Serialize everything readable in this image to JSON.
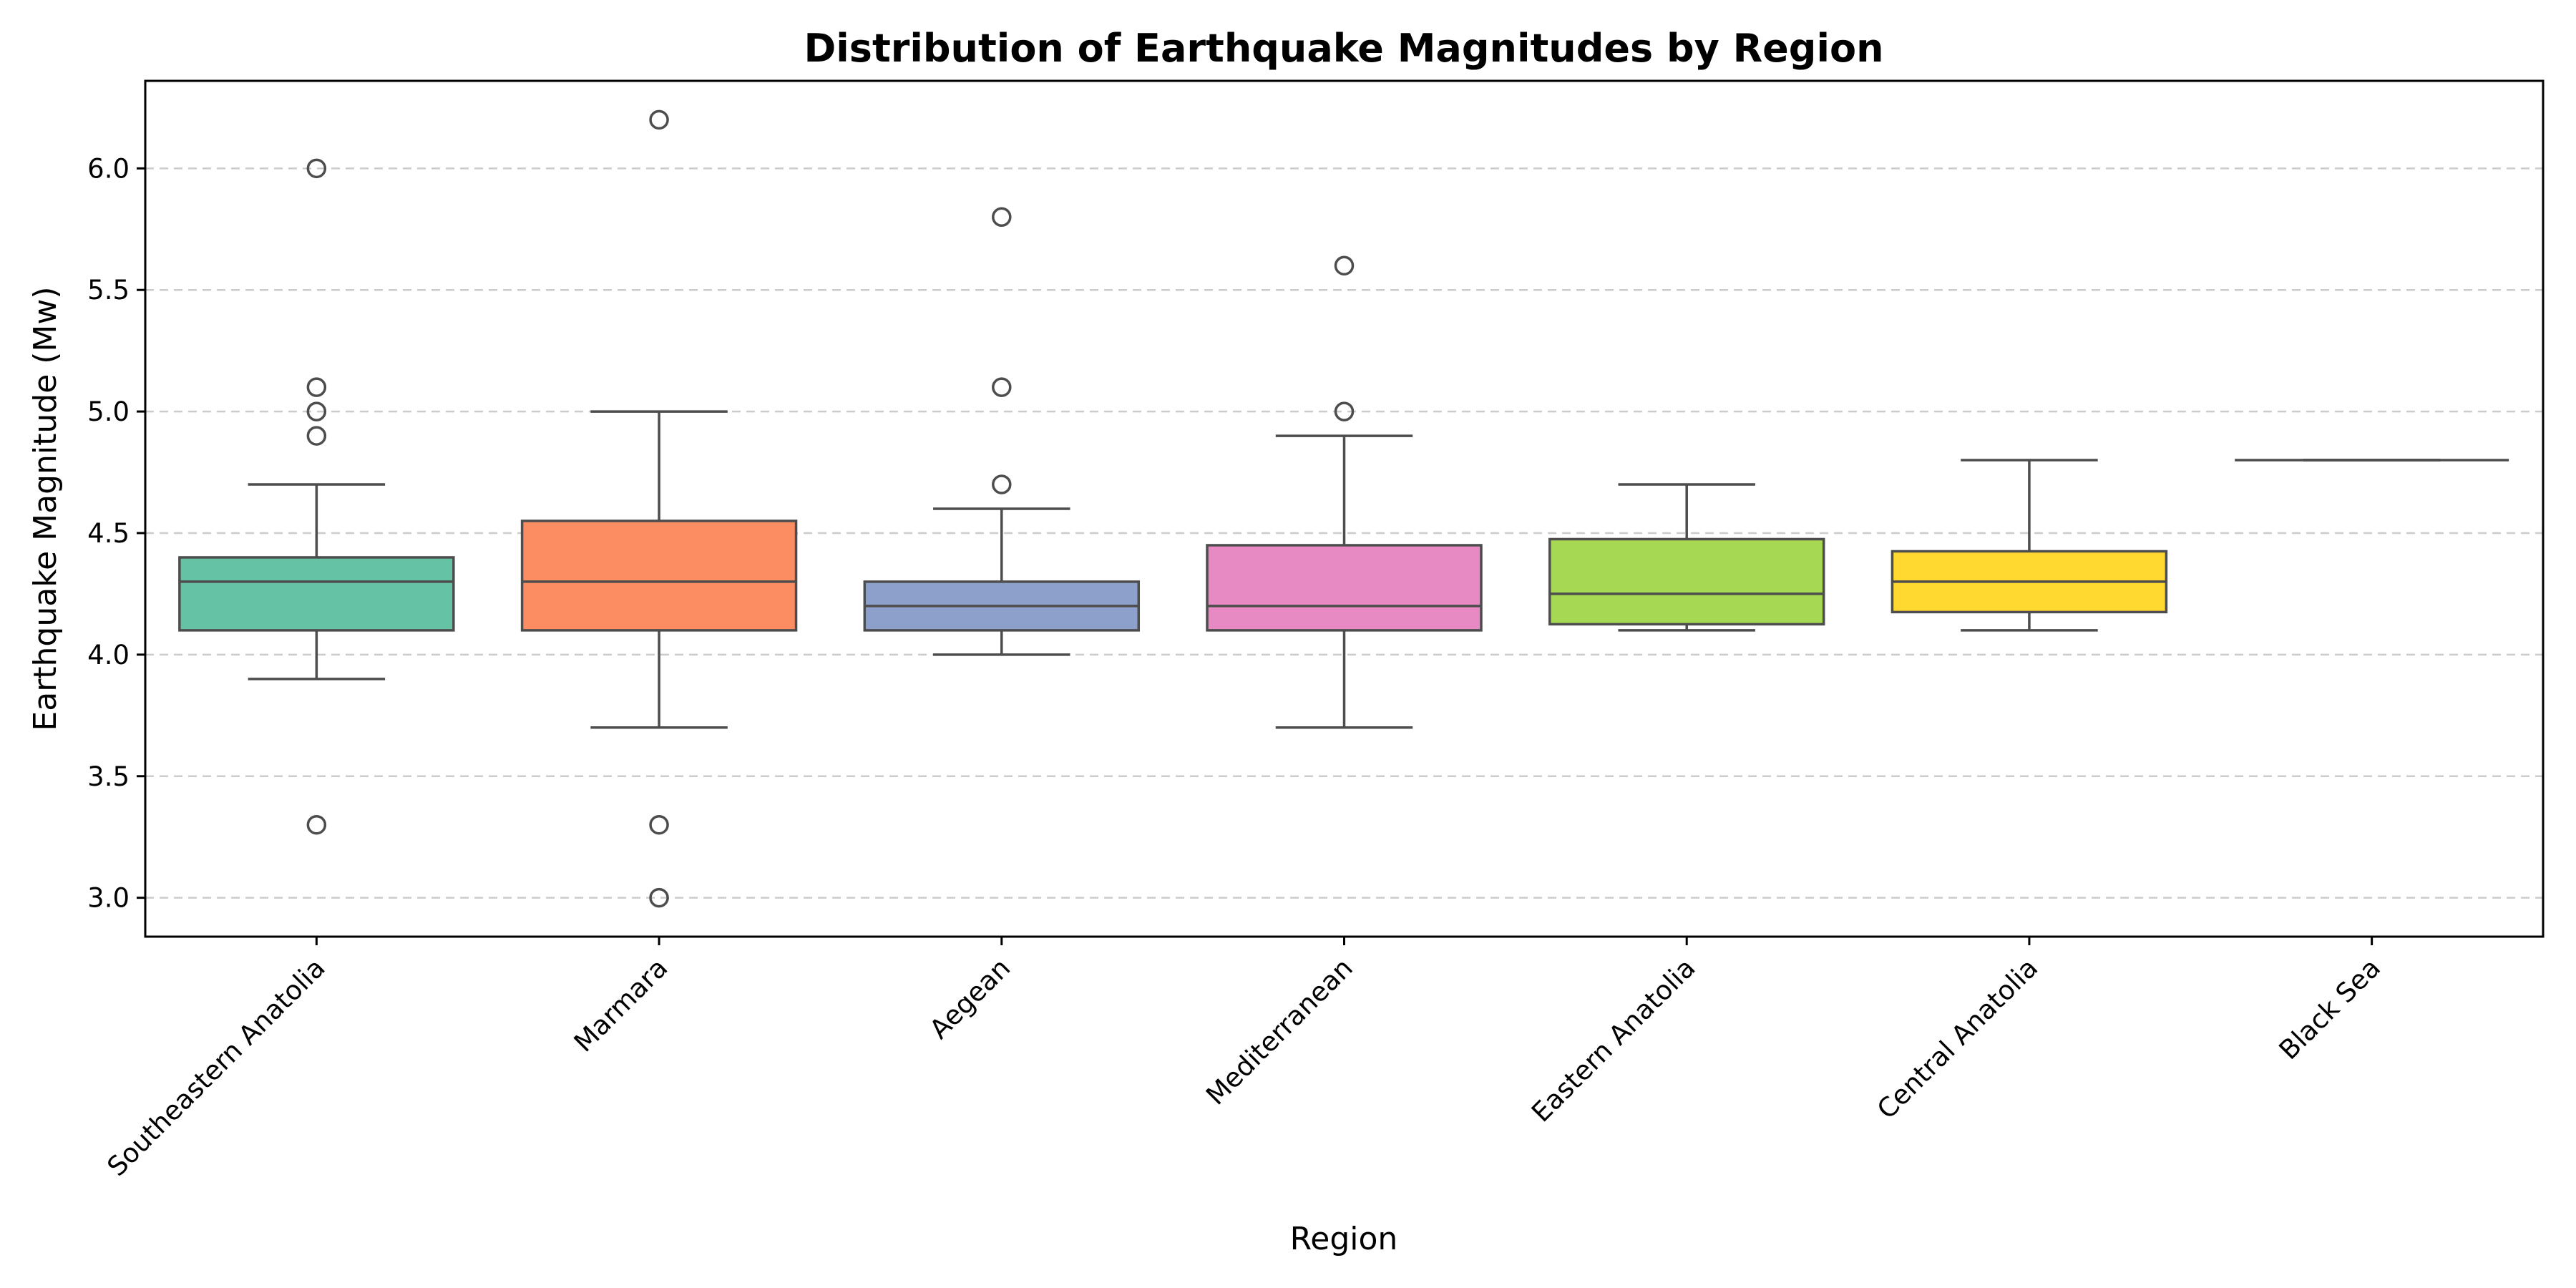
{
  "chart_data": {
    "type": "box",
    "title": "Distribution of Earthquake Magnitudes by Region",
    "xlabel": "Region",
    "ylabel": "Earthquake Magnitude (Mw)",
    "ylim": [
      2.84,
      6.36
    ],
    "yticks": [
      3.0,
      3.5,
      4.0,
      4.5,
      5.0,
      5.5,
      6.0
    ],
    "ytick_labels": [
      "3.0",
      "3.5",
      "4.0",
      "4.5",
      "5.0",
      "5.5",
      "6.0"
    ],
    "grid": "y-dashed",
    "categories": [
      "Southeastern Anatolia",
      "Marmara",
      "Aegean",
      "Mediterranean",
      "Eastern Anatolia",
      "Central Anatolia",
      "Black Sea"
    ],
    "boxes": [
      {
        "category": "Southeastern Anatolia",
        "whislo": 3.9,
        "q1": 4.1,
        "median": 4.3,
        "q3": 4.4,
        "whishi": 4.7,
        "fliers": [
          3.3,
          4.9,
          5.0,
          5.1,
          6.0
        ],
        "color": "#66c2a5"
      },
      {
        "category": "Marmara",
        "whislo": 3.7,
        "q1": 4.1,
        "median": 4.3,
        "q3": 4.55,
        "whishi": 5.0,
        "fliers": [
          3.0,
          3.3,
          6.2
        ],
        "color": "#fc8d62"
      },
      {
        "category": "Aegean",
        "whislo": 4.0,
        "q1": 4.1,
        "median": 4.2,
        "q3": 4.3,
        "whishi": 4.6,
        "fliers": [
          4.7,
          5.1,
          5.8
        ],
        "color": "#8da0cb"
      },
      {
        "category": "Mediterranean",
        "whislo": 3.7,
        "q1": 4.1,
        "median": 4.2,
        "q3": 4.45,
        "whishi": 4.9,
        "fliers": [
          5.0,
          5.6
        ],
        "color": "#e78ac3"
      },
      {
        "category": "Eastern Anatolia",
        "whislo": 4.1,
        "q1": 4.125,
        "median": 4.25,
        "q3": 4.475,
        "whishi": 4.7,
        "fliers": [],
        "color": "#a6d854"
      },
      {
        "category": "Central Anatolia",
        "whislo": 4.1,
        "q1": 4.175,
        "median": 4.3,
        "q3": 4.425,
        "whishi": 4.8,
        "fliers": [],
        "color": "#ffd92f"
      },
      {
        "category": "Black Sea",
        "whislo": 4.8,
        "q1": 4.8,
        "median": 4.8,
        "q3": 4.8,
        "whishi": 4.8,
        "fliers": [],
        "color": "#e5c494"
      }
    ]
  }
}
